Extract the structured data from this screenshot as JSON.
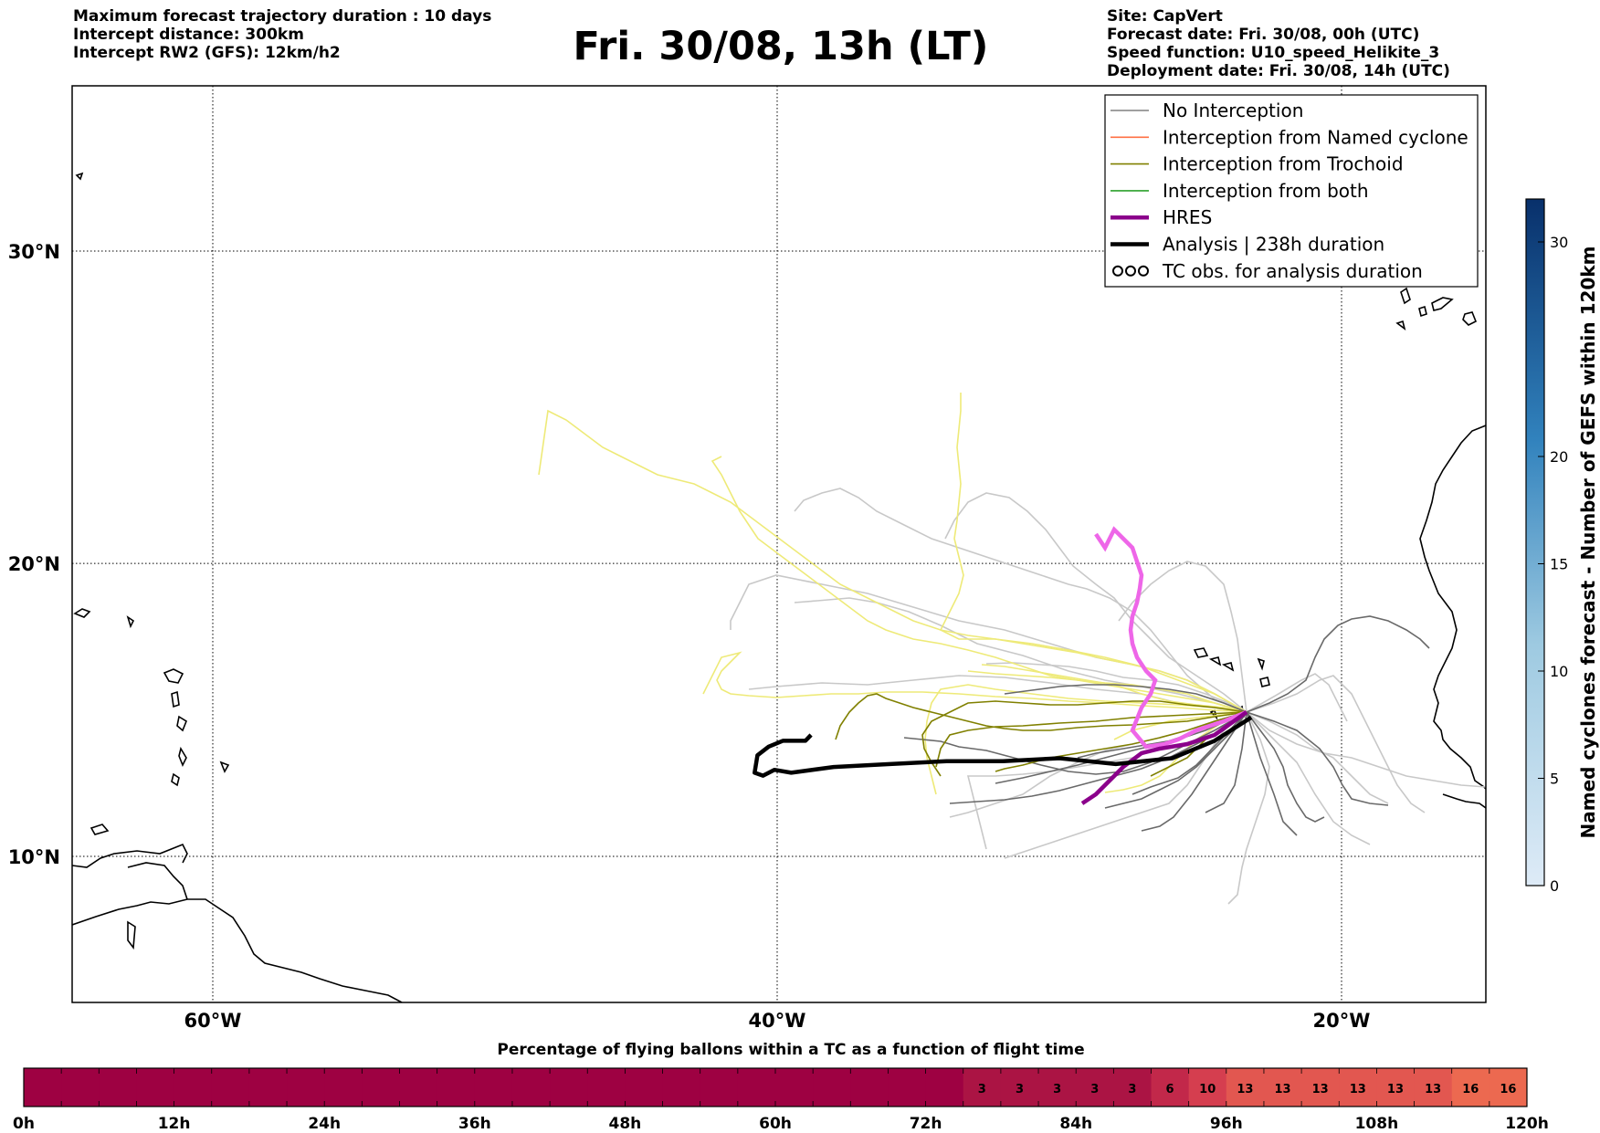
{
  "header": {
    "left_lines": [
      "Maximum forecast trajectory duration : 10 days",
      "Intercept distance: 300km",
      "Intercept RW2 (GFS):  12km/h2"
    ],
    "title": "Fri. 30/08, 13h (LT)",
    "right_lines": [
      "Site: CapVert",
      "Forecast date: Fri. 30/08, 00h (UTC)",
      "Speed function: U10_speed_Helikite_3",
      "Deployment date: Fri. 30/08, 14h (UTC)"
    ]
  },
  "map": {
    "lon_ticks": [
      {
        "lon": -60,
        "label": "60°W"
      },
      {
        "lon": -40,
        "label": "40°W"
      },
      {
        "lon": -20,
        "label": "20°W"
      }
    ],
    "lat_ticks": [
      {
        "lat": 30,
        "label": "30°N"
      },
      {
        "lat": 20,
        "label": "20°N"
      },
      {
        "lat": 10,
        "label": "10°N"
      }
    ],
    "gridlines": "dotted"
  },
  "legend": {
    "items": [
      {
        "label": "No Interception",
        "color": "#808080",
        "kind": "thin-line"
      },
      {
        "label": "Interception from Named cyclone",
        "color": "#ff7043",
        "kind": "thin-line"
      },
      {
        "label": "Interception from Trochoid",
        "color": "#808000",
        "kind": "thin-line"
      },
      {
        "label": "Interception from both",
        "color": "#2ca02c",
        "kind": "thin-line"
      },
      {
        "label": "HRES",
        "color": "#8b008b",
        "kind": "thick-line"
      },
      {
        "label": "Analysis | 238h duration",
        "color": "#000000",
        "kind": "thick-line"
      },
      {
        "label": "TC obs. for analysis duration",
        "color": "#000000",
        "kind": "cyclone-symbol"
      }
    ]
  },
  "colorbar": {
    "label": "Named cyclones forecast - Number of GEFS within 120km",
    "ticks": [
      0,
      5,
      10,
      15,
      20,
      30
    ],
    "max": 32
  },
  "timebar": {
    "title": "Percentage of flying ballons within a TC as a function of flight time",
    "tick_labels": [
      "0h",
      "12h",
      "24h",
      "36h",
      "48h",
      "60h",
      "72h",
      "84h",
      "96h",
      "108h",
      "120h"
    ],
    "hours_per_cell": 3,
    "values": [
      0,
      0,
      0,
      0,
      0,
      0,
      0,
      0,
      0,
      0,
      0,
      0,
      0,
      0,
      0,
      0,
      0,
      0,
      0,
      0,
      0,
      0,
      0,
      0,
      0,
      3,
      3,
      3,
      3,
      3,
      6,
      10,
      13,
      13,
      13,
      13,
      13,
      13,
      16,
      16
    ]
  },
  "chart_data": {
    "type": "map",
    "site": "CapVert",
    "lon_range": [
      -65,
      -15
    ],
    "lat_range": [
      5.5,
      35.2
    ],
    "analysis_track": [
      [
        -23.2,
        14.8
      ],
      [
        -24.5,
        14.0
      ],
      [
        -26,
        13.4
      ],
      [
        -28,
        13.2
      ],
      [
        -30,
        13.4
      ],
      [
        -32,
        13.3
      ],
      [
        -34,
        13.3
      ],
      [
        -36,
        13.2
      ],
      [
        -38,
        13.1
      ],
      [
        -39.5,
        12.9
      ],
      [
        -40.1,
        13.0
      ],
      [
        -40.5,
        12.8
      ],
      [
        -40.8,
        12.9
      ],
      [
        -40.7,
        13.5
      ],
      [
        -40.3,
        13.8
      ],
      [
        -39.8,
        14.0
      ],
      [
        -39.0,
        14.0
      ],
      [
        -38.8,
        14.2
      ]
    ],
    "hres_tracks": [
      [
        [
          -23.2,
          14.8
        ],
        [
          -25,
          13.5
        ],
        [
          -26.5,
          12.6
        ],
        [
          -28,
          12.3
        ],
        [
          -29.3,
          11.9
        ],
        [
          -30.5,
          11.4
        ]
      ],
      [
        [
          -23.2,
          14.8
        ],
        [
          -24.8,
          14.3
        ],
        [
          -26.5,
          13.7
        ],
        [
          -27.5,
          13.4
        ],
        [
          -28.2,
          14.2
        ],
        [
          -28.6,
          15.2
        ],
        [
          -28.3,
          16.2
        ],
        [
          -27.2,
          17.8
        ],
        [
          -26.8,
          19.0
        ],
        [
          -27.2,
          20.0
        ],
        [
          -28.0,
          20.5
        ],
        [
          -28.8,
          21.0
        ]
      ]
    ]
  }
}
